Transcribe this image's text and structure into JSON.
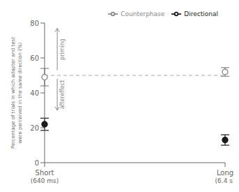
{
  "chart_data": {
    "type": "scatter",
    "ylabel": "Percentage of trials in which adapter and test\nwere perceived in the same direction (%)",
    "categories": [
      "Short\n(640 ms)",
      "Long\n(6.4 s)"
    ],
    "series": [
      {
        "name": "Directional",
        "color": "#1a1a1a",
        "marker": "filled circle",
        "line_style": "none",
        "values": [
          22,
          13
        ],
        "errors": [
          3.5,
          3.0
        ]
      },
      {
        "name": "Counterphase",
        "color": "#888888",
        "marker": "open circle",
        "line_style": "none",
        "values": [
          49,
          52
        ],
        "errors": [
          5.0,
          2.5
        ]
      }
    ],
    "ylim": [
      0,
      80
    ],
    "yticks": [
      0,
      20,
      40,
      60,
      80
    ],
    "reference_line": {
      "y": 50,
      "line_style": "dashed",
      "color": "#aaaaaa"
    },
    "annotations": [
      {
        "text": "priming",
        "y_from": 53,
        "y_to": 77,
        "color": "#888888"
      },
      {
        "text": "aftereffect",
        "y_from": 48,
        "y_to": 30,
        "color": "#888888"
      }
    ],
    "legend": "upper right",
    "grid": false
  }
}
